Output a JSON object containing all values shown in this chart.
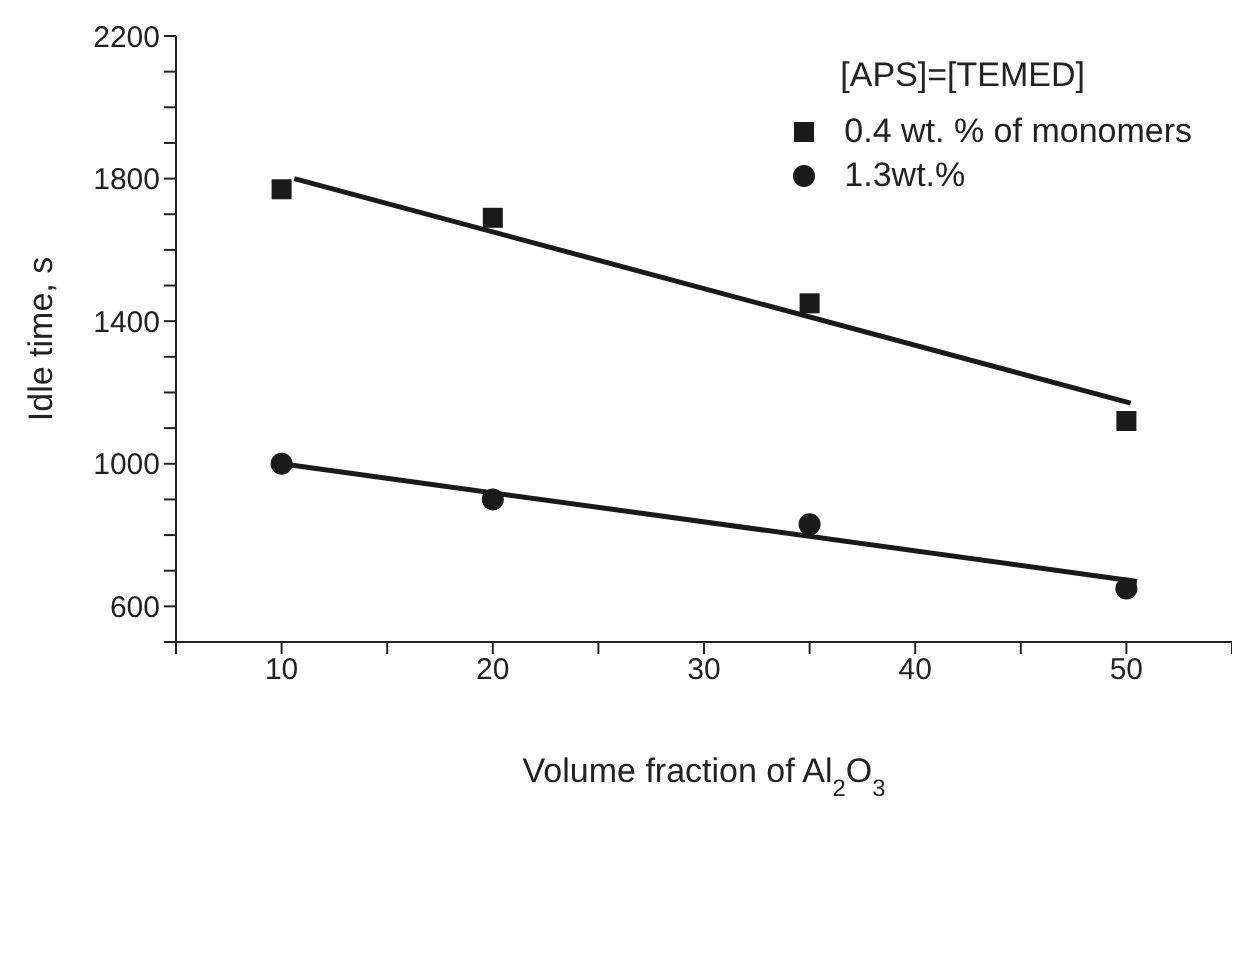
{
  "chart_data": {
    "type": "scatter",
    "xlabel": "Volume fraction of Al$_{2}$O$_{3}$",
    "ylabel": "Idle time, s",
    "legend_title": "[APS]=[TEMED]",
    "legend": "top right",
    "grid": false,
    "xlim": [
      5,
      55
    ],
    "xticks": [
      {
        "value": 5,
        "label": null
      },
      10,
      {
        "value": 15,
        "label": null
      },
      20,
      {
        "value": 25,
        "label": null
      },
      30,
      {
        "value": 35,
        "label": null
      },
      40,
      {
        "value": 45,
        "label": null
      },
      50,
      {
        "value": 55,
        "label": null
      }
    ],
    "ylim": [
      500,
      2200
    ],
    "yticks": [
      {
        "value": 500,
        "label": null
      },
      600,
      {
        "value": 700,
        "label": null
      },
      {
        "value": 800,
        "label": null
      },
      {
        "value": 900,
        "label": null
      },
      1000,
      {
        "value": 1100,
        "label": null
      },
      {
        "value": 1200,
        "label": null
      },
      {
        "value": 1300,
        "label": null
      },
      1400,
      {
        "value": 1500,
        "label": null
      },
      {
        "value": 1600,
        "label": null
      },
      {
        "value": 1700,
        "label": null
      },
      1800,
      {
        "value": 1900,
        "label": null
      },
      {
        "value": 2000,
        "label": null
      },
      {
        "value": 2100,
        "label": null
      },
      2200
    ],
    "x": [
      10,
      20,
      35,
      50
    ],
    "series": [
      {
        "name": "0.4 wt. % of monomers",
        "color": "#1a1a1a",
        "marker": "square",
        "values": [
          1770,
          1690,
          1450,
          1120
        ]
      },
      {
        "name": "1.3wt.%",
        "color": "#1a1a1a",
        "marker": "circle",
        "values": [
          1000,
          900,
          830,
          650
        ]
      },
      {
        "type": "line",
        "color": "#1a1a1a",
        "marker": "none",
        "line_style": "solid",
        "x": [
          10.6,
          50.2
        ],
        "values": [
          1800,
          1170
        ]
      },
      {
        "type": "line",
        "color": "#1a1a1a",
        "marker": "none",
        "line_style": "solid",
        "x": [
          10,
          50.5
        ],
        "values": [
          1000,
          670
        ]
      }
    ]
  }
}
